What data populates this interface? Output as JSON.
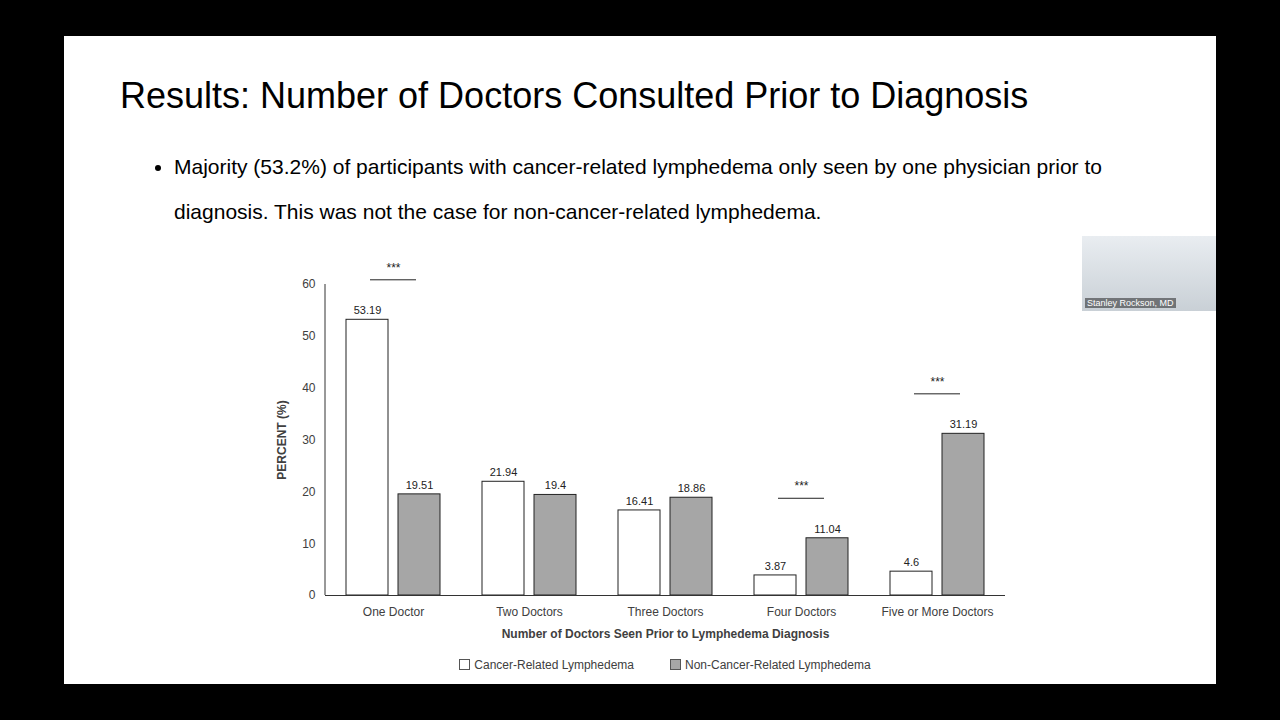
{
  "chart_data": {
    "type": "bar",
    "title": "Results: Number of Doctors Consulted Prior to Diagnosis",
    "subtitle": "Majority (53.2%) of participants with cancer-related lymphedema only seen by one physician prior to diagnosis. This was not the case for non-cancer-related lymphedema.",
    "x_label": "Number of Doctors Seen Prior to Lymphedema Diagnosis",
    "y_label": "PERCENT (%)",
    "categories": [
      "One Doctor",
      "Two Doctors",
      "Three Doctors",
      "Four Doctors",
      "Five or More Doctors"
    ],
    "series": [
      {
        "name": "Cancer-Related Lymphedema",
        "color": "#ffffff",
        "values": [
          53.19,
          21.94,
          16.41,
          3.87,
          4.6
        ]
      },
      {
        "name": "Non-Cancer-Related Lymphedema",
        "color": "#a6a6a6",
        "values": [
          19.51,
          19.4,
          18.86,
          11.04,
          31.19
        ]
      }
    ],
    "ylim": [
      0,
      60
    ],
    "yticks": [
      0,
      10,
      20,
      30,
      40,
      50,
      60
    ],
    "data_labels": true,
    "legend": "bottom",
    "annotations": [
      {
        "category": "One Doctor",
        "text": "***"
      },
      {
        "category": "Four Doctors",
        "text": "***"
      },
      {
        "category": "Five or More Doctors",
        "text": "***"
      }
    ],
    "speaker": "Stanley Rockson, MD"
  }
}
